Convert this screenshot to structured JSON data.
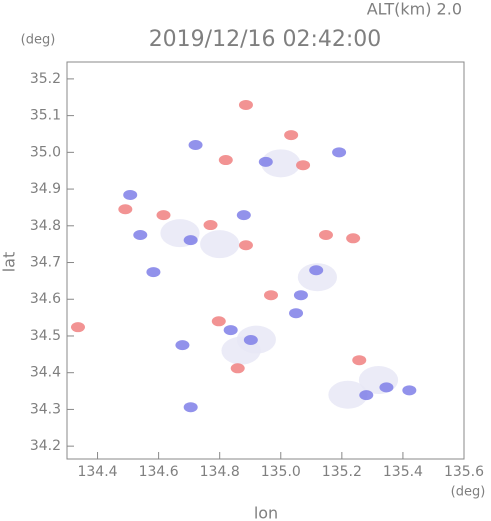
{
  "chart_data": {
    "type": "scatter",
    "title": "2019/12/16 02:42:00",
    "subtitle": "ALT(km)  2.0",
    "y_unit": "(deg)",
    "x_unit": "(deg)",
    "x_label": "lon",
    "y_label": "lat",
    "xlim": [
      134.3,
      135.6
    ],
    "ylim": [
      34.165,
      35.246
    ],
    "xticks": [
      134.4,
      134.6,
      134.8,
      {
        "value": 135,
        "label": "135.0"
      },
      135.2,
      135.4,
      135.6
    ],
    "yticks": [
      34.2,
      34.3,
      34.4,
      34.5,
      34.6,
      34.7,
      34.8,
      34.9,
      {
        "value": 35,
        "label": "35.0"
      },
      35.1,
      35.2
    ],
    "series": [
      {
        "color": "#e8e8f6",
        "x": [
          135.32,
          135.22,
          134.92,
          134.87,
          134.67,
          134.8,
          135.0,
          135.12
        ],
        "y": [
          34.38,
          34.34,
          34.49,
          34.46,
          34.78,
          34.75,
          34.97,
          34.66
        ]
      },
      {
        "color": "#f08080",
        "x": [
          134.336,
          134.491,
          134.616,
          134.82,
          135.073,
          135.148,
          135.237,
          134.886,
          134.77,
          134.968,
          135.257,
          134.886,
          134.797,
          134.859,
          135.034
        ],
        "y": [
          34.524,
          34.845,
          34.829,
          34.979,
          34.965,
          34.775,
          34.766,
          34.747,
          34.802,
          34.611,
          34.434,
          35.129,
          34.54,
          34.412,
          35.047
        ]
      },
      {
        "color": "#7f7fe8",
        "x": [
          134.507,
          134.54,
          134.705,
          134.879,
          135.191,
          135.346,
          135.421,
          135.28,
          135.066,
          135.116,
          134.721,
          134.951,
          134.678,
          134.902,
          134.583,
          134.705,
          135.05,
          134.836
        ],
        "y": [
          34.884,
          34.775,
          34.761,
          34.829,
          35.0,
          34.36,
          34.352,
          34.339,
          34.611,
          34.679,
          35.02,
          34.974,
          34.475,
          34.489,
          34.674,
          34.306,
          34.562,
          34.516
        ]
      }
    ]
  }
}
